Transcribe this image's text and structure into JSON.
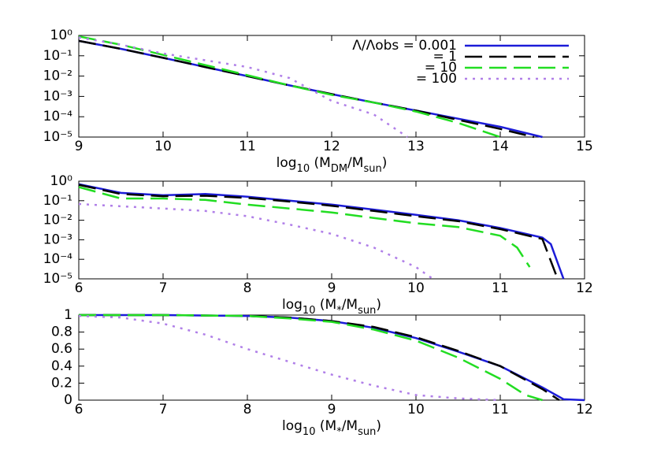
{
  "chart_data": [
    {
      "type": "line",
      "log_y": true,
      "xlim": [
        9,
        15
      ],
      "xticks": [
        9,
        10,
        11,
        12,
        13,
        14,
        15
      ],
      "ylim": [
        1e-05,
        1
      ],
      "yticks": [
        {
          "value": 1,
          "label": "10⁰"
        },
        {
          "value": 0.1,
          "label": "10⁻¹"
        },
        {
          "value": 0.01,
          "label": "10⁻²"
        },
        {
          "value": 0.001,
          "label": "10⁻³"
        },
        {
          "value": 0.0001,
          "label": "10⁻⁴"
        },
        {
          "value": 1e-05,
          "label": "10⁻⁵"
        }
      ],
      "xlabel": [
        "log",
        "10",
        " (M",
        "DM",
        "/M",
        "sun",
        ")"
      ],
      "legend": "upper right",
      "series": [
        {
          "name": "Λ/Λobs = 0.001",
          "color": "#1c1cd8",
          "dash": "solid",
          "x": [
            9,
            9.5,
            10,
            10.5,
            11,
            11.5,
            12,
            12.5,
            13,
            13.5,
            14,
            14.5
          ],
          "values": [
            0.54,
            0.22,
            0.079,
            0.028,
            0.01,
            0.0035,
            0.0013,
            0.0005,
            0.0002,
            8e-05,
            3.2e-05,
            1e-05
          ]
        },
        {
          "name": "= 1",
          "color": "#000000",
          "dash": "dashed",
          "x": [
            9,
            9.5,
            10,
            10.5,
            11,
            11.5,
            12,
            12.5,
            13,
            13.5,
            14,
            14.4
          ],
          "values": [
            0.54,
            0.22,
            0.079,
            0.028,
            0.01,
            0.0035,
            0.0013,
            0.0005,
            0.0002,
            7e-05,
            2.5e-05,
            1e-05
          ]
        },
        {
          "name": "= 10",
          "color": "#22dd22",
          "dash": "dashed",
          "x": [
            9,
            9.5,
            10,
            10.5,
            11,
            11.5,
            12,
            12.5,
            13,
            13.5,
            14
          ],
          "values": [
            0.9,
            0.35,
            0.11,
            0.035,
            0.011,
            0.0035,
            0.0012,
            0.0005,
            0.00018,
            5e-05,
            1e-05
          ]
        },
        {
          "name": "= 100",
          "color": "#b07fe8",
          "dash": "dotted",
          "x": [
            9,
            9.5,
            10,
            10.5,
            11,
            11.5,
            12,
            12.5,
            12.9
          ],
          "values": [
            0.8,
            0.35,
            0.13,
            0.06,
            0.028,
            0.008,
            0.0006,
            0.00013,
            1e-05
          ]
        }
      ]
    },
    {
      "type": "line",
      "log_y": true,
      "xlim": [
        6,
        12
      ],
      "xticks": [
        6,
        7,
        8,
        9,
        10,
        11,
        12
      ],
      "ylim": [
        1e-05,
        1
      ],
      "yticks": [
        {
          "value": 1,
          "label": "10⁰"
        },
        {
          "value": 0.1,
          "label": "10⁻¹"
        },
        {
          "value": 0.01,
          "label": "10⁻²"
        },
        {
          "value": 0.001,
          "label": "10⁻³"
        },
        {
          "value": 0.0001,
          "label": "10⁻⁴"
        },
        {
          "value": 1e-05,
          "label": "10⁻⁵"
        }
      ],
      "xlabel": [
        "log",
        "10",
        " (M",
        "*",
        "/M",
        "sun",
        ")"
      ],
      "series": [
        {
          "color": "#1c1cd8",
          "dash": "solid",
          "x": [
            6,
            6.5,
            7,
            7.5,
            8,
            8.5,
            9,
            9.5,
            10,
            10.5,
            11,
            11.5,
            11.6,
            11.75
          ],
          "values": [
            0.7,
            0.25,
            0.19,
            0.22,
            0.16,
            0.1,
            0.063,
            0.035,
            0.019,
            0.01,
            0.004,
            0.0013,
            0.0006,
            1e-05
          ]
        },
        {
          "color": "#000000",
          "dash": "dashed",
          "x": [
            6,
            6.5,
            7,
            7.5,
            8,
            8.5,
            9,
            9.5,
            10,
            10.5,
            11,
            11.5,
            11.68
          ],
          "values": [
            0.65,
            0.22,
            0.17,
            0.18,
            0.14,
            0.09,
            0.055,
            0.03,
            0.016,
            0.009,
            0.0035,
            0.0011,
            1e-05
          ]
        },
        {
          "color": "#22dd22",
          "dash": "dashed",
          "x": [
            6,
            6.5,
            7,
            7.5,
            8,
            8.5,
            9,
            9.5,
            10,
            10.5,
            11,
            11.2,
            11.35
          ],
          "values": [
            0.5,
            0.13,
            0.13,
            0.11,
            0.063,
            0.04,
            0.025,
            0.013,
            0.007,
            0.0045,
            0.0016,
            0.0004,
            4e-05
          ]
        },
        {
          "color": "#b07fe8",
          "dash": "dotted",
          "x": [
            6,
            7,
            7.5,
            8,
            8.5,
            9,
            9.5,
            10,
            10.2
          ],
          "values": [
            0.068,
            0.04,
            0.03,
            0.016,
            0.006,
            0.002,
            0.0004,
            4e-05,
            1e-05
          ]
        }
      ]
    },
    {
      "type": "line",
      "log_y": false,
      "xlim": [
        6,
        12
      ],
      "xticks": [
        6,
        7,
        8,
        9,
        10,
        11,
        12
      ],
      "ylim": [
        0,
        1
      ],
      "yticks": [
        0,
        0.2,
        0.4,
        0.6,
        0.8,
        1
      ],
      "xlabel": [
        "log",
        "10",
        " (M",
        "*",
        "/M",
        "sun",
        ")"
      ],
      "series": [
        {
          "color": "#1c1cd8",
          "dash": "solid",
          "x": [
            6,
            7,
            8,
            8.5,
            9,
            9.5,
            10,
            10.5,
            11,
            11.5,
            11.75,
            12
          ],
          "values": [
            1,
            1,
            0.99,
            0.97,
            0.93,
            0.85,
            0.73,
            0.57,
            0.4,
            0.15,
            0.01,
            0
          ]
        },
        {
          "color": "#000000",
          "dash": "dashed",
          "x": [
            6,
            7,
            8,
            8.5,
            9,
            9.5,
            10,
            10.5,
            11,
            11.5,
            11.7
          ],
          "values": [
            1,
            1,
            0.99,
            0.97,
            0.93,
            0.86,
            0.74,
            0.58,
            0.4,
            0.13,
            0
          ]
        },
        {
          "color": "#22dd22",
          "dash": "dashed",
          "x": [
            6,
            7,
            8,
            8.5,
            9,
            9.5,
            10,
            10.5,
            11,
            11.3,
            11.5
          ],
          "values": [
            1,
            1,
            0.99,
            0.96,
            0.92,
            0.83,
            0.7,
            0.5,
            0.25,
            0.06,
            0
          ]
        },
        {
          "color": "#b07fe8",
          "dash": "dotted",
          "x": [
            6,
            6.5,
            7,
            7.5,
            8,
            8.5,
            9,
            9.5,
            10,
            10.5,
            11
          ],
          "values": [
            0.99,
            0.97,
            0.9,
            0.77,
            0.6,
            0.45,
            0.3,
            0.17,
            0.06,
            0.02,
            0
          ]
        }
      ]
    }
  ]
}
